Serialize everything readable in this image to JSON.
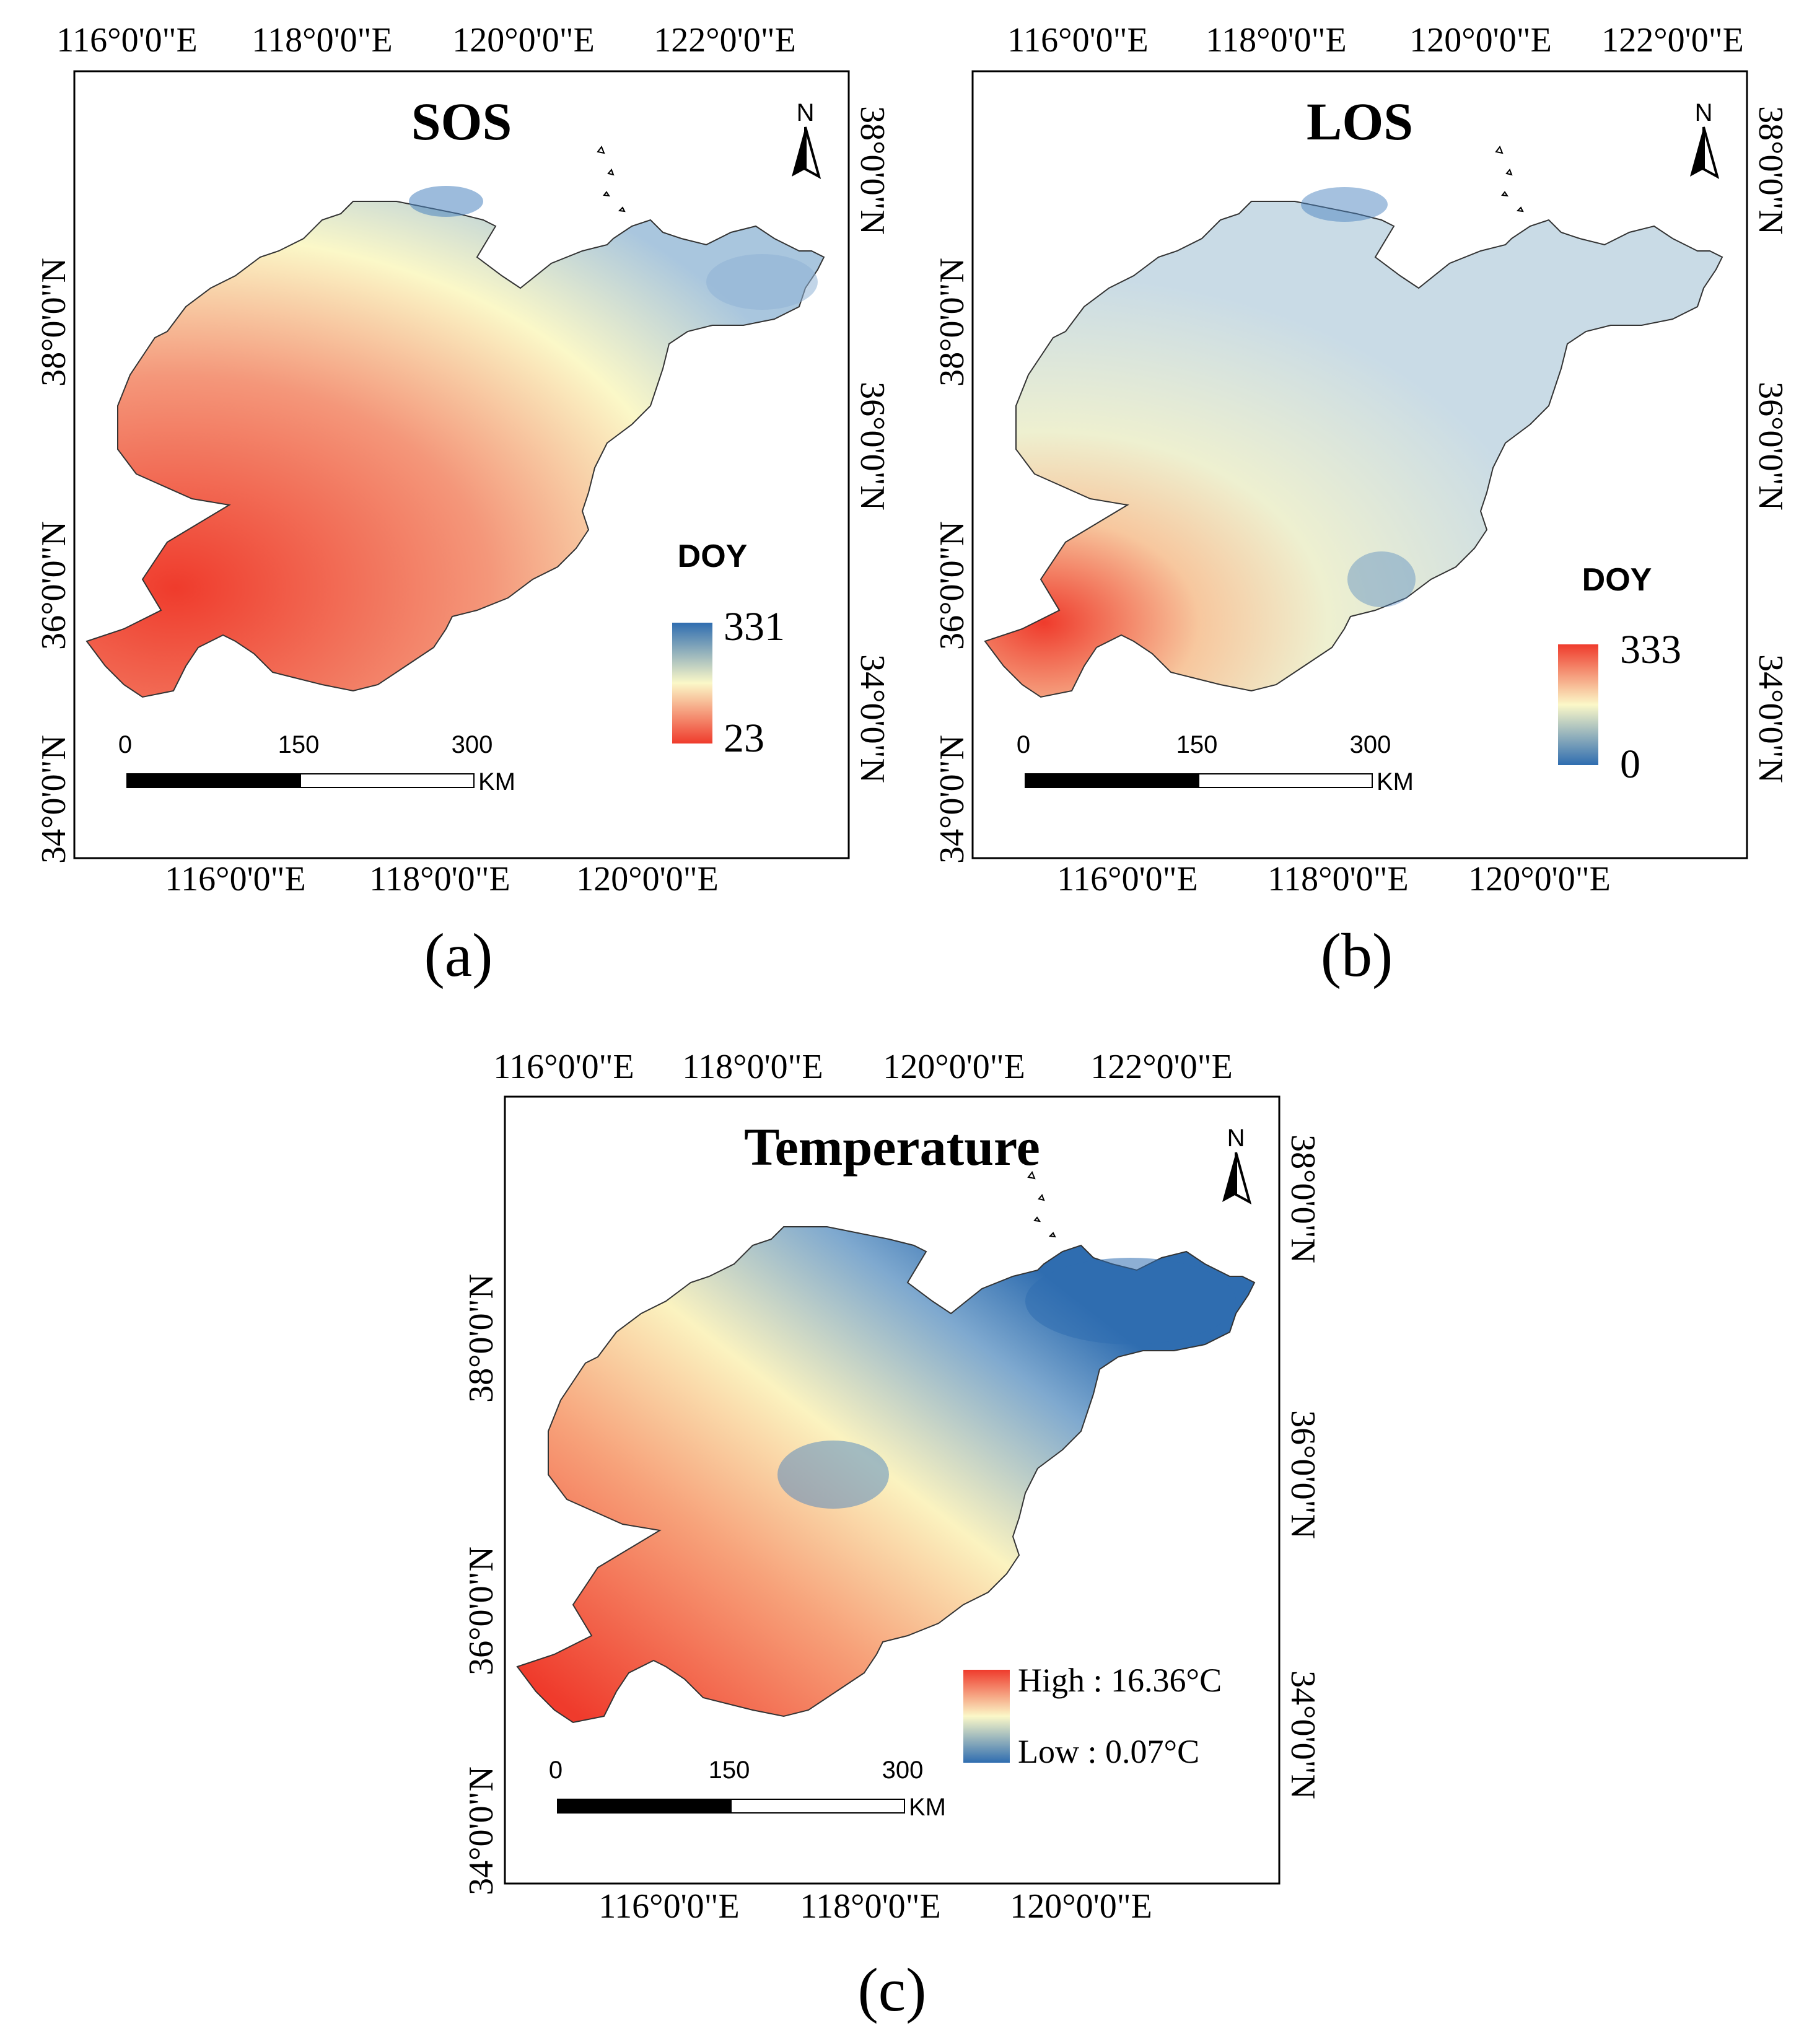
{
  "panels": {
    "a": {
      "title": "SOS",
      "caption": "(a)",
      "legend_title": "DOY",
      "legend_max": "331",
      "legend_min": "23",
      "legend_high_color": "#2f6db0",
      "legend_mid_color": "#fbf8c8",
      "legend_low_color": "#ef3b2c",
      "top_ticks": [
        "116°0'0\"E",
        "118°0'0\"E",
        "120°0'0\"E",
        "122°0'0\"E"
      ],
      "bottom_ticks": [
        "116°0'0\"E",
        "118°0'0\"E",
        "120°0'0\"E"
      ],
      "left_ticks": [
        "38°0'0\"N",
        "36°0'0\"N",
        "34°0'0\"N"
      ],
      "right_ticks": [
        "38°0'0\"N",
        "36°0'0\"N",
        "34°0'0\"N"
      ],
      "north_label": "N",
      "scale": [
        "0",
        "150",
        "300"
      ],
      "scale_unit": "KM"
    },
    "b": {
      "title": "LOS",
      "caption": "(b)",
      "legend_title": "DOY",
      "legend_max": "333",
      "legend_min": "0",
      "legend_high_color": "#ef3b2c",
      "legend_mid_color": "#fbf8c8",
      "legend_low_color": "#2f6db0",
      "top_ticks": [
        "116°0'0\"E",
        "118°0'0\"E",
        "120°0'0\"E",
        "122°0'0\"E"
      ],
      "bottom_ticks": [
        "116°0'0\"E",
        "118°0'0\"E",
        "120°0'0\"E"
      ],
      "left_ticks": [
        "38°0'0\"N",
        "36°0'0\"N",
        "34°0'0\"N"
      ],
      "right_ticks": [
        "38°0'0\"N",
        "36°0'0\"N",
        "34°0'0\"N"
      ],
      "north_label": "N",
      "scale": [
        "0",
        "150",
        "300"
      ],
      "scale_unit": "KM"
    },
    "c": {
      "title": "Temperature",
      "caption": "(c)",
      "legend_high": "High : 16.36°C",
      "legend_low": "Low : 0.07°C",
      "legend_high_color": "#ef3b2c",
      "legend_mid_color": "#fbf8c8",
      "legend_low_color": "#2f6db0",
      "top_ticks": [
        "116°0'0\"E",
        "118°0'0\"E",
        "120°0'0\"E",
        "122°0'0\"E"
      ],
      "bottom_ticks": [
        "116°0'0\"E",
        "118°0'0\"E",
        "120°0'0\"E"
      ],
      "left_ticks": [
        "38°0'0\"N",
        "36°0'0\"N",
        "34°0'0\"N"
      ],
      "right_ticks": [
        "38°0'0\"N",
        "36°0'0\"N",
        "34°0'0\"N"
      ],
      "north_label": "N",
      "scale": [
        "0",
        "150",
        "300"
      ],
      "scale_unit": "KM"
    }
  }
}
